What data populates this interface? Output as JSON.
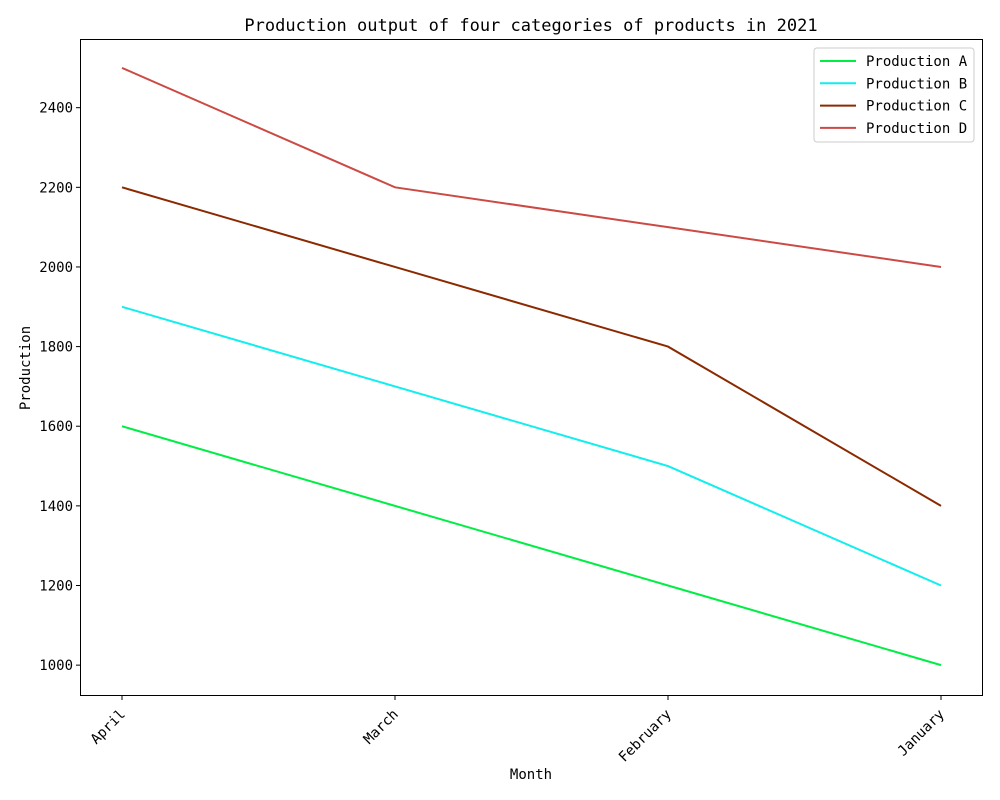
{
  "chart_data": {
    "type": "line",
    "title": "Production output of four categories of products in 2021",
    "xlabel": "Month",
    "ylabel": "Production",
    "categories": [
      "April",
      "March",
      "February",
      "January"
    ],
    "ylim": [
      925,
      2570
    ],
    "yticks": [
      1000,
      1200,
      1400,
      1600,
      1800,
      2000,
      2200,
      2400
    ],
    "grid": false,
    "legend_position": "top-right",
    "series": [
      {
        "name": "Production A",
        "color": "#00ee44",
        "values": [
          1600,
          1400,
          1200,
          1000
        ]
      },
      {
        "name": "Production B",
        "color": "#11eeee",
        "values": [
          1900,
          1700,
          1500,
          1200
        ]
      },
      {
        "name": "Production C",
        "color": "#8b2a00",
        "values": [
          2200,
          2000,
          1800,
          1400
        ]
      },
      {
        "name": "Production D",
        "color": "#cc4a44",
        "values": [
          2500,
          2200,
          2100,
          2000
        ]
      }
    ]
  }
}
